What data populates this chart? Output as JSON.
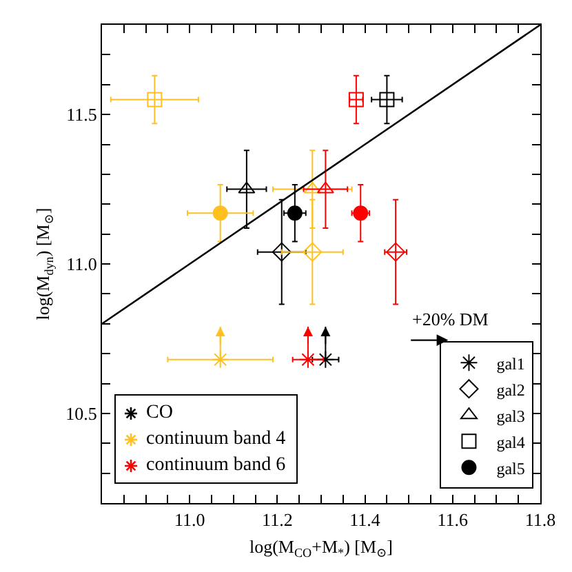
{
  "chart_data": {
    "type": "scatter",
    "xlabel": "log(M$_{CO}$+M$_{*}$) [M$_{⊙}$]",
    "ylabel": "log(M$_{dyn}$) [M$_{⊙}$]",
    "xlim": [
      10.8,
      11.8
    ],
    "ylim": [
      10.2,
      11.8
    ],
    "xticks": [
      {
        "value": 10.85,
        "label": null
      },
      {
        "value": 10.9,
        "label": null
      },
      {
        "value": 10.95,
        "label": null
      },
      {
        "value": 11.0,
        "label": "11.0"
      },
      {
        "value": 11.05,
        "label": null
      },
      {
        "value": 11.1,
        "label": null
      },
      {
        "value": 11.15,
        "label": null
      },
      {
        "value": 11.2,
        "label": "11.2"
      },
      {
        "value": 11.25,
        "label": null
      },
      {
        "value": 11.3,
        "label": null
      },
      {
        "value": 11.35,
        "label": null
      },
      {
        "value": 11.4,
        "label": "11.4"
      },
      {
        "value": 11.45,
        "label": null
      },
      {
        "value": 11.5,
        "label": null
      },
      {
        "value": 11.55,
        "label": null
      },
      {
        "value": 11.6,
        "label": "11.6"
      },
      {
        "value": 11.65,
        "label": null
      },
      {
        "value": 11.7,
        "label": null
      },
      {
        "value": 11.75,
        "label": null
      },
      {
        "value": 11.8,
        "label": "11.8"
      }
    ],
    "yticks": [
      {
        "value": 10.3,
        "label": null
      },
      {
        "value": 10.4,
        "label": null
      },
      {
        "value": 10.5,
        "label": "10.5"
      },
      {
        "value": 10.6,
        "label": null
      },
      {
        "value": 10.7,
        "label": null
      },
      {
        "value": 10.8,
        "label": null
      },
      {
        "value": 10.9,
        "label": null
      },
      {
        "value": 11.0,
        "label": "11.0"
      },
      {
        "value": 11.1,
        "label": null
      },
      {
        "value": 11.2,
        "label": null
      },
      {
        "value": 11.3,
        "label": null
      },
      {
        "value": 11.4,
        "label": null
      },
      {
        "value": 11.5,
        "label": "11.5"
      },
      {
        "value": 11.6,
        "label": null
      },
      {
        "value": 11.7,
        "label": null
      }
    ],
    "grid": false,
    "legend": "bottom right",
    "annotations": [
      "+20% DM",
      "CO",
      "continuum band 4",
      "continuum band 6"
    ],
    "series": [
      {
        "name": "gal1",
        "marker": "cross",
        "x": [
          11.31,
          11.07,
          11.27
        ],
        "values": [
          10.68,
          10.68,
          10.68
        ],
        "colors": [
          "#000000",
          "#ffc020",
          "#ff0000"
        ],
        "xerrors": [
          0.03,
          0.12,
          0.035
        ],
        "errors": [
          [
            10.68,
            10.79
          ],
          [
            10.68,
            10.79
          ],
          [
            10.68,
            10.79
          ]
        ]
      },
      {
        "name": "gal2",
        "marker": "diamond",
        "x": [
          11.21,
          11.28,
          11.47
        ],
        "values": [
          11.04,
          11.04,
          11.04
        ],
        "colors": [
          "#000000",
          "#ffc020",
          "#ff0000"
        ],
        "xerrors": [
          0.055,
          0.07,
          0.025
        ],
        "errors": [
          0.175,
          0.175,
          0.175
        ]
      },
      {
        "name": "gal3",
        "marker": "triangle",
        "x": [
          11.13,
          11.28,
          11.31
        ],
        "values": [
          11.25,
          11.25,
          11.25
        ],
        "colors": [
          "#000000",
          "#ffc020",
          "#ff0000"
        ],
        "xerrors": [
          0.045,
          0.09,
          0.05
        ],
        "errors": [
          0.13,
          0.13,
          0.13
        ]
      },
      {
        "name": "gal4",
        "marker": "square",
        "x": [
          11.45,
          10.92,
          11.38
        ],
        "values": [
          11.55,
          11.55,
          11.55
        ],
        "colors": [
          "#000000",
          "#ffc020",
          "#ff0000"
        ],
        "xerrors": [
          0.035,
          0.1,
          0.015
        ],
        "errors": [
          0.08,
          0.08,
          0.08
        ]
      },
      {
        "name": "gal5",
        "marker": "circle",
        "x": [
          11.24,
          11.07,
          11.39
        ],
        "values": [
          11.17,
          11.17,
          11.17
        ],
        "colors": [
          "#000000",
          "#ffc020",
          "#ff0000"
        ],
        "xerrors": [
          0.025,
          0.075,
          0.02
        ],
        "errors": [
          0.095,
          0.095,
          0.095
        ]
      },
      {
        "type": "line",
        "color": "#000000",
        "line_style": "solid",
        "marker": "none",
        "x": [
          10.8,
          11.8
        ],
        "values": [
          10.8,
          11.8
        ]
      }
    ]
  }
}
